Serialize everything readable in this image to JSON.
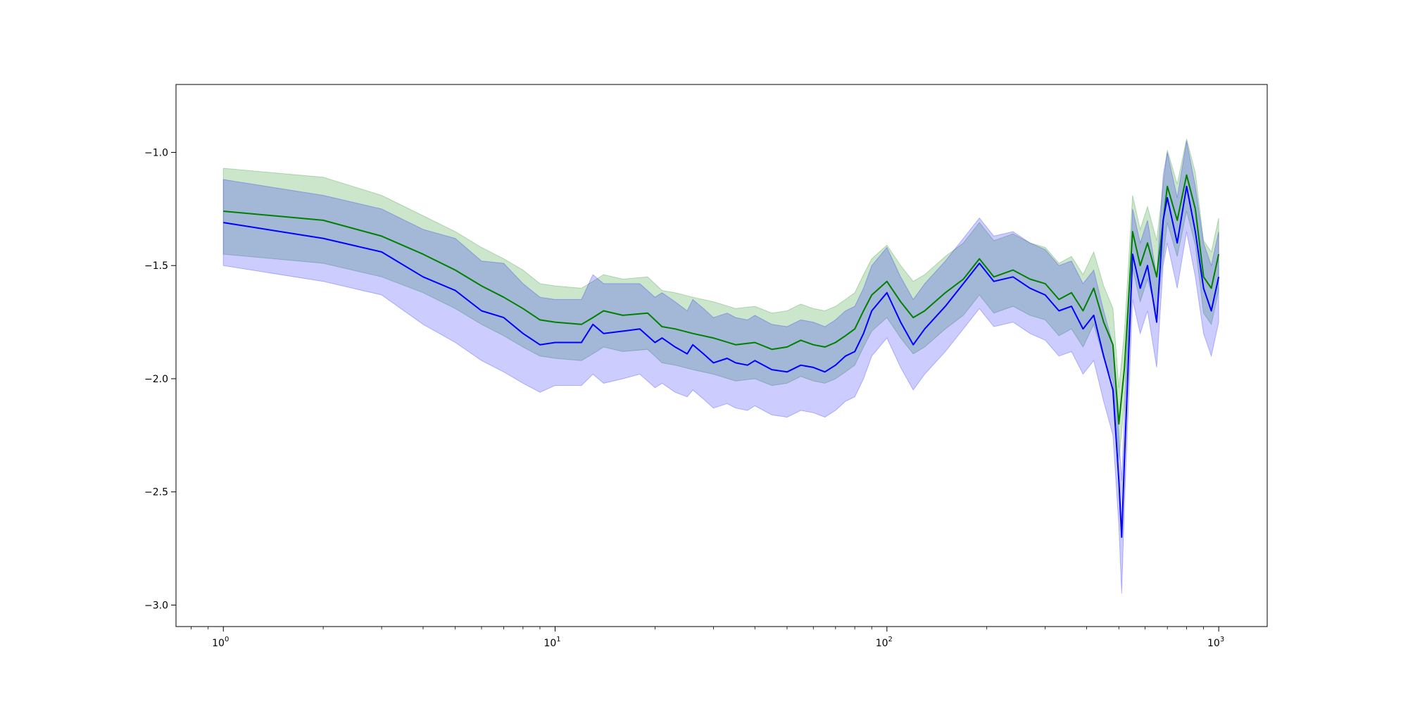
{
  "chart_data": {
    "type": "line",
    "title": "",
    "xlabel": "",
    "ylabel": "",
    "xscale": "log",
    "xlim": [
      0.72,
      1400
    ],
    "ylim": [
      -3.095,
      -0.7
    ],
    "grid": false,
    "legend": "none",
    "x_ticks": [
      {
        "value": 1,
        "base": "10",
        "exp": "0"
      },
      {
        "value": 10,
        "base": "10",
        "exp": "1"
      },
      {
        "value": 100,
        "base": "10",
        "exp": "2"
      },
      {
        "value": 1000,
        "base": "10",
        "exp": "3"
      }
    ],
    "y_ticks": [
      {
        "value": -1.0,
        "label": "−1.0"
      },
      {
        "value": -1.5,
        "label": "−1.5"
      },
      {
        "value": -2.0,
        "label": "−2.0"
      },
      {
        "value": -2.5,
        "label": "−2.5"
      },
      {
        "value": -3.0,
        "label": "−3.0"
      }
    ],
    "series": [
      {
        "color": "#008000",
        "band_color": "#008000",
        "x": [
          1,
          2,
          3,
          4,
          5,
          6,
          7,
          8,
          9,
          10,
          12,
          13,
          14,
          16,
          19,
          21,
          23,
          26,
          30,
          35,
          40,
          45,
          50,
          55,
          60,
          65,
          70,
          75,
          80,
          85,
          90,
          100,
          110,
          120,
          130,
          150,
          170,
          190,
          210,
          240,
          270,
          300,
          330,
          360,
          390,
          420,
          450,
          480,
          500,
          520,
          550,
          580,
          610,
          650,
          700,
          750,
          800,
          850,
          900,
          950,
          1000
        ],
        "y": [
          -1.26,
          -1.3,
          -1.37,
          -1.45,
          -1.52,
          -1.59,
          -1.64,
          -1.69,
          -1.74,
          -1.75,
          -1.76,
          -1.73,
          -1.7,
          -1.72,
          -1.71,
          -1.77,
          -1.78,
          -1.8,
          -1.82,
          -1.85,
          -1.84,
          -1.87,
          -1.86,
          -1.83,
          -1.85,
          -1.86,
          -1.84,
          -1.81,
          -1.78,
          -1.7,
          -1.63,
          -1.57,
          -1.66,
          -1.73,
          -1.7,
          -1.62,
          -1.56,
          -1.47,
          -1.55,
          -1.52,
          -1.56,
          -1.58,
          -1.65,
          -1.62,
          -1.7,
          -1.6,
          -1.75,
          -1.85,
          -2.2,
          -1.95,
          -1.35,
          -1.5,
          -1.4,
          -1.55,
          -1.15,
          -1.3,
          -1.1,
          -1.25,
          -1.55,
          -1.6,
          -1.45
        ],
        "lower": [
          -1.45,
          -1.49,
          -1.55,
          -1.62,
          -1.69,
          -1.76,
          -1.81,
          -1.86,
          -1.9,
          -1.91,
          -1.92,
          -1.89,
          -1.86,
          -1.88,
          -1.87,
          -1.93,
          -1.94,
          -1.96,
          -1.98,
          -2.01,
          -2.0,
          -2.03,
          -2.02,
          -1.99,
          -2.01,
          -2.02,
          -2.0,
          -1.97,
          -1.94,
          -1.86,
          -1.79,
          -1.73,
          -1.82,
          -1.89,
          -1.86,
          -1.78,
          -1.72,
          -1.63,
          -1.71,
          -1.68,
          -1.72,
          -1.74,
          -1.81,
          -1.78,
          -1.86,
          -1.76,
          -1.91,
          -2.01,
          -2.36,
          -2.11,
          -1.51,
          -1.66,
          -1.56,
          -1.71,
          -1.31,
          -1.46,
          -1.26,
          -1.41,
          -1.71,
          -1.76,
          -1.61
        ],
        "upper": [
          -1.07,
          -1.11,
          -1.19,
          -1.28,
          -1.35,
          -1.42,
          -1.47,
          -1.52,
          -1.58,
          -1.59,
          -1.6,
          -1.57,
          -1.54,
          -1.56,
          -1.55,
          -1.61,
          -1.62,
          -1.64,
          -1.66,
          -1.69,
          -1.68,
          -1.71,
          -1.7,
          -1.67,
          -1.69,
          -1.7,
          -1.68,
          -1.65,
          -1.62,
          -1.54,
          -1.47,
          -1.41,
          -1.5,
          -1.57,
          -1.54,
          -1.46,
          -1.4,
          -1.31,
          -1.39,
          -1.36,
          -1.4,
          -1.42,
          -1.49,
          -1.46,
          -1.54,
          -1.44,
          -1.59,
          -1.69,
          -2.04,
          -1.79,
          -1.19,
          -1.34,
          -1.24,
          -1.39,
          -0.99,
          -1.14,
          -0.94,
          -1.09,
          -1.39,
          -1.44,
          -1.29
        ]
      },
      {
        "color": "#0000ff",
        "band_color": "#0000ff",
        "x": [
          1,
          2,
          3,
          4,
          5,
          6,
          7,
          8,
          9,
          10,
          12,
          13,
          14,
          16,
          18,
          20,
          21,
          23,
          25,
          26,
          28,
          30,
          33,
          35,
          38,
          40,
          45,
          50,
          55,
          60,
          65,
          70,
          75,
          80,
          85,
          90,
          100,
          110,
          120,
          130,
          150,
          170,
          190,
          210,
          240,
          270,
          300,
          330,
          360,
          390,
          420,
          450,
          480,
          500,
          510,
          520,
          550,
          580,
          610,
          650,
          680,
          700,
          750,
          800,
          850,
          900,
          950,
          1000
        ],
        "y": [
          -1.31,
          -1.38,
          -1.44,
          -1.55,
          -1.61,
          -1.7,
          -1.73,
          -1.8,
          -1.85,
          -1.84,
          -1.84,
          -1.76,
          -1.8,
          -1.79,
          -1.78,
          -1.84,
          -1.82,
          -1.86,
          -1.89,
          -1.85,
          -1.89,
          -1.93,
          -1.91,
          -1.93,
          -1.94,
          -1.92,
          -1.96,
          -1.97,
          -1.94,
          -1.95,
          -1.97,
          -1.94,
          -1.9,
          -1.88,
          -1.8,
          -1.7,
          -1.62,
          -1.75,
          -1.85,
          -1.78,
          -1.68,
          -1.58,
          -1.49,
          -1.57,
          -1.55,
          -1.6,
          -1.63,
          -1.7,
          -1.68,
          -1.78,
          -1.72,
          -1.9,
          -2.05,
          -2.45,
          -2.7,
          -2.35,
          -1.45,
          -1.6,
          -1.5,
          -1.75,
          -1.3,
          -1.2,
          -1.4,
          -1.15,
          -1.35,
          -1.6,
          -1.7,
          -1.55
        ],
        "lower": [
          -1.5,
          -1.57,
          -1.63,
          -1.76,
          -1.84,
          -1.92,
          -1.97,
          -2.02,
          -2.06,
          -2.03,
          -2.03,
          -1.98,
          -2.02,
          -2.0,
          -1.98,
          -2.04,
          -2.02,
          -2.06,
          -2.08,
          -2.05,
          -2.09,
          -2.13,
          -2.11,
          -2.13,
          -2.14,
          -2.12,
          -2.16,
          -2.17,
          -2.14,
          -2.15,
          -2.17,
          -2.14,
          -2.1,
          -2.08,
          -2.0,
          -1.9,
          -1.82,
          -1.95,
          -2.05,
          -1.98,
          -1.88,
          -1.78,
          -1.69,
          -1.77,
          -1.75,
          -1.8,
          -1.83,
          -1.9,
          -1.88,
          -1.98,
          -1.92,
          -2.1,
          -2.25,
          -2.65,
          -2.95,
          -2.55,
          -1.65,
          -1.8,
          -1.7,
          -1.95,
          -1.5,
          -1.4,
          -1.6,
          -1.35,
          -1.55,
          -1.8,
          -1.9,
          -1.75
        ],
        "upper": [
          -1.12,
          -1.19,
          -1.25,
          -1.34,
          -1.38,
          -1.48,
          -1.49,
          -1.58,
          -1.64,
          -1.65,
          -1.65,
          -1.54,
          -1.58,
          -1.58,
          -1.58,
          -1.64,
          -1.62,
          -1.66,
          -1.7,
          -1.65,
          -1.69,
          -1.73,
          -1.71,
          -1.73,
          -1.74,
          -1.72,
          -1.76,
          -1.77,
          -1.74,
          -1.75,
          -1.77,
          -1.74,
          -1.7,
          -1.68,
          -1.6,
          -1.5,
          -1.42,
          -1.55,
          -1.65,
          -1.58,
          -1.48,
          -1.38,
          -1.29,
          -1.37,
          -1.35,
          -1.4,
          -1.43,
          -1.5,
          -1.48,
          -1.58,
          -1.52,
          -1.7,
          -1.85,
          -2.25,
          -2.45,
          -2.15,
          -1.25,
          -1.4,
          -1.3,
          -1.55,
          -1.1,
          -1.0,
          -1.2,
          -0.95,
          -1.15,
          -1.4,
          -1.5,
          -1.35
        ]
      }
    ]
  }
}
